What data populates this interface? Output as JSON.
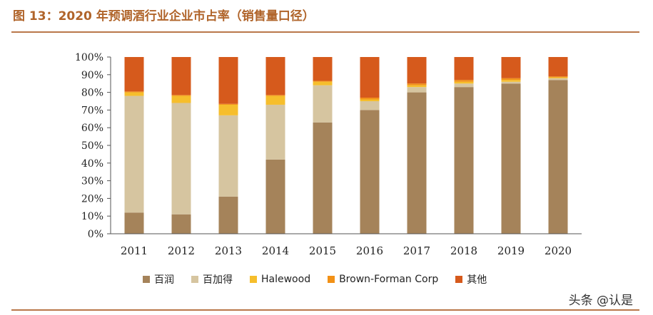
{
  "figure_title": "图 13：2020 年预调酒行业企业市占率（销售量口径）",
  "watermark": "头条 @认是",
  "chart_data": {
    "type": "bar",
    "stacked": true,
    "categories": [
      "2011",
      "2012",
      "2013",
      "2014",
      "2015",
      "2016",
      "2017",
      "2018",
      "2019",
      "2020"
    ],
    "ylim": [
      0,
      100
    ],
    "yticks": [
      "0%",
      "10%",
      "20%",
      "30%",
      "40%",
      "50%",
      "60%",
      "70%",
      "80%",
      "90%",
      "100%"
    ],
    "legend_position": "bottom",
    "grid": false,
    "series": [
      {
        "name": "百润",
        "color": "#a5835a",
        "values": [
          12,
          11,
          21,
          42,
          63,
          70,
          80,
          83,
          85,
          87
        ]
      },
      {
        "name": "百加得",
        "color": "#d6c5a0",
        "values": [
          66,
          63,
          46,
          31,
          21,
          5,
          3,
          2,
          1,
          1
        ]
      },
      {
        "name": "Halewood",
        "color": "#f6be2c",
        "values": [
          2,
          4,
          6,
          5,
          2,
          1,
          1,
          1,
          1,
          0.5
        ]
      },
      {
        "name": "Brown-Forman Corp",
        "color": "#f29116",
        "values": [
          0.5,
          0.5,
          0.5,
          0.5,
          0.5,
          1,
          1,
          1,
          1,
          0.5
        ]
      },
      {
        "name": "其他",
        "color": "#d65a1c",
        "values": [
          19.5,
          21.5,
          26.5,
          21.5,
          13.5,
          23,
          15,
          13,
          12,
          11
        ]
      }
    ]
  }
}
